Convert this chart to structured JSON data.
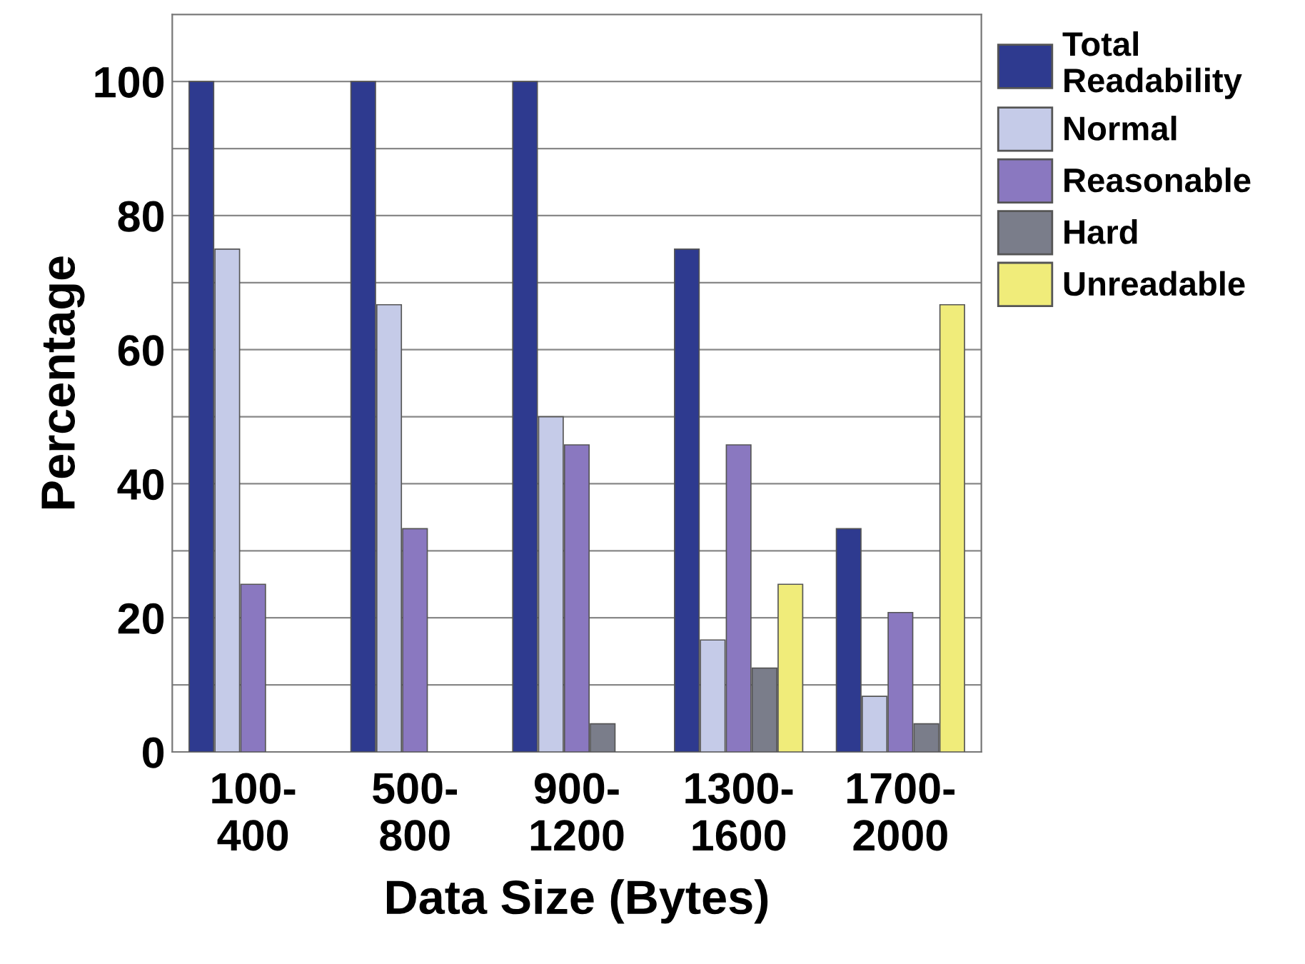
{
  "chart_data": {
    "type": "bar",
    "xlabel": "Data Size (Bytes)",
    "ylabel": "Percentage",
    "categories": [
      "100-\n400",
      "500-\n800",
      "900-\n1200",
      "1300-\n1600",
      "1700-\n2000"
    ],
    "series": [
      {
        "name": "Total\nReadability",
        "color": "#2e3a8f",
        "values": [
          100,
          100,
          100,
          75,
          33.3
        ]
      },
      {
        "name": "Normal",
        "color": "#c5cbe8",
        "values": [
          75,
          66.7,
          50,
          16.7,
          8.3
        ]
      },
      {
        "name": "Reasonable",
        "color": "#8a78c0",
        "values": [
          25,
          33.3,
          45.8,
          45.8,
          20.8
        ]
      },
      {
        "name": "Hard",
        "color": "#7a7d8a",
        "values": [
          null,
          null,
          4.2,
          12.5,
          4.2
        ]
      },
      {
        "name": "Unreadable",
        "color": "#f0ec7a",
        "values": [
          null,
          null,
          null,
          25,
          66.7
        ]
      }
    ],
    "ylim": [
      0,
      110
    ],
    "yticks": [
      0,
      {
        "value": 10,
        "label": null
      },
      20,
      {
        "value": 30,
        "label": null
      },
      40,
      {
        "value": 50,
        "label": null
      },
      60,
      {
        "value": 70,
        "label": null
      },
      80,
      {
        "value": 90,
        "label": null
      },
      100,
      {
        "value": 110,
        "label": null
      }
    ],
    "grid": "y",
    "legend": "top right"
  }
}
